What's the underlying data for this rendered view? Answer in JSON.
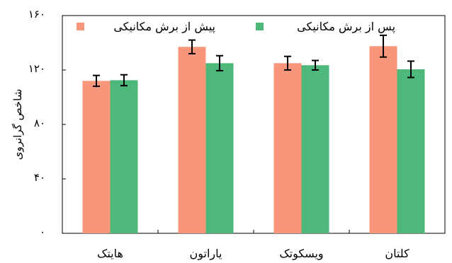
{
  "chart_data": {
    "type": "bar",
    "ylabel": "شاخص گرانروی",
    "ylim": [
      0,
      160
    ],
    "yticks": [
      0,
      40,
      80,
      120,
      160
    ],
    "ytick_labels": [
      "۰",
      "۴۰",
      "۸۰",
      "۱۲۰",
      "۱۶۰"
    ],
    "categories": [
      "هایتک",
      "یاراتون",
      "ویسکوتک",
      "کلتان"
    ],
    "grid": false,
    "legend_position": "top",
    "series": [
      {
        "name": "پیش از برش مکانیکی",
        "color": "#F7967A",
        "values": [
          112,
          137,
          125,
          137.5
        ],
        "errors": [
          4,
          5,
          5,
          8
        ]
      },
      {
        "name": "پس از برش مکانیکی",
        "color": "#4DB87A",
        "values": [
          112.5,
          125,
          123.5,
          120.5
        ],
        "errors": [
          4,
          5.5,
          3.5,
          6
        ]
      }
    ]
  }
}
